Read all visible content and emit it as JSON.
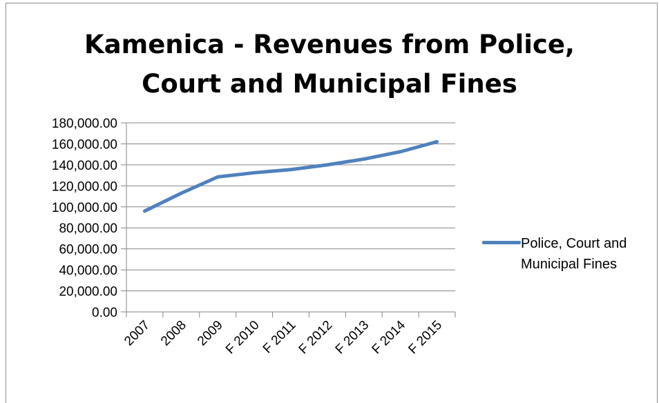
{
  "chart_data": {
    "type": "line",
    "title": "Kamenica - Revenues from Police, Court and Municipal Fines",
    "title_lines": [
      "Kamenica - Revenues from Police,",
      "Court and Municipal Fines"
    ],
    "categories": [
      "2007",
      "2008",
      "2009",
      "F 2010",
      "F 2011",
      "F 2012",
      "F 2013",
      "F 2014",
      "F 2015"
    ],
    "series": [
      {
        "name": "Police, Court and Municipal Fines",
        "values": [
          96000,
          113000,
          128500,
          132500,
          135500,
          140000,
          145500,
          152500,
          162000
        ],
        "color": "#4f81bd"
      }
    ],
    "y_ticks": [
      "0.00",
      "20,000.00",
      "40,000.00",
      "60,000.00",
      "80,000.00",
      "100,000.00",
      "120,000.00",
      "140,000.00",
      "160,000.00",
      "180,000.00"
    ],
    "ylim": [
      0,
      180000
    ],
    "grid": true,
    "legend_position": "right",
    "xlabel": "",
    "ylabel": ""
  }
}
